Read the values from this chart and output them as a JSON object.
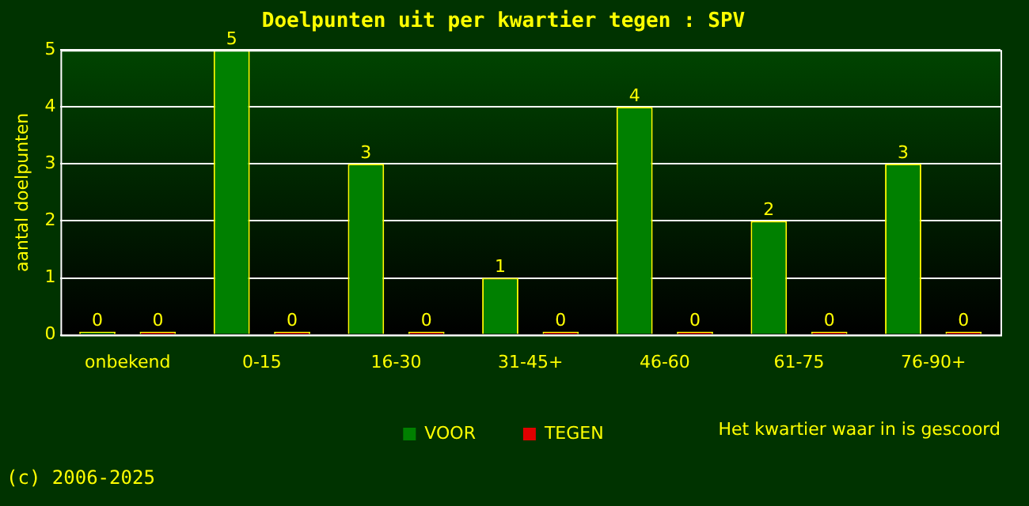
{
  "chart_data": {
    "type": "bar",
    "title": "Doelpunten uit per kwartier tegen : SPV",
    "ylabel": "aantal doelpunten",
    "xlabel": "Het kwartier waar in is gescoord",
    "categories": [
      "onbekend",
      "0-15",
      "16-30",
      "31-45+",
      "46-60",
      "61-75",
      "76-90+"
    ],
    "series": [
      {
        "name": "VOOR",
        "color": "#008000",
        "values": [
          0,
          5,
          3,
          1,
          4,
          2,
          3
        ]
      },
      {
        "name": "TEGEN",
        "color": "#e00000",
        "values": [
          0,
          0,
          0,
          0,
          0,
          0,
          0
        ]
      }
    ],
    "ylim": [
      0,
      5
    ],
    "yticks": [
      0,
      1,
      2,
      3,
      4,
      5
    ],
    "grid": "y",
    "legend": "bottom",
    "data_labels": true,
    "annotations": [
      "(c) 2006-2025"
    ]
  }
}
